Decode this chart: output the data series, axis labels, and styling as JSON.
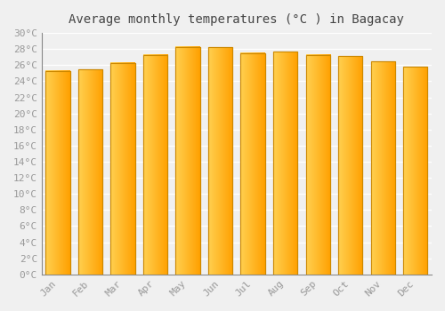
{
  "title": "Average monthly temperatures (°C ) in Bagacay",
  "months": [
    "Jan",
    "Feb",
    "Mar",
    "Apr",
    "May",
    "Jun",
    "Jul",
    "Aug",
    "Sep",
    "Oct",
    "Nov",
    "Dec"
  ],
  "values": [
    25.3,
    25.5,
    26.3,
    27.3,
    28.3,
    28.2,
    27.5,
    27.7,
    27.3,
    27.1,
    26.5,
    25.8
  ],
  "bar_color_left": "#FFD050",
  "bar_color_right": "#FFA000",
  "bar_edge_color": "#CC8800",
  "ylim": [
    0,
    30
  ],
  "ytick_step": 2,
  "background_color": "#f0f0f0",
  "grid_color": "#ffffff",
  "title_fontsize": 10,
  "tick_fontsize": 8,
  "font_family": "monospace",
  "title_color": "#444444",
  "tick_color": "#999999"
}
